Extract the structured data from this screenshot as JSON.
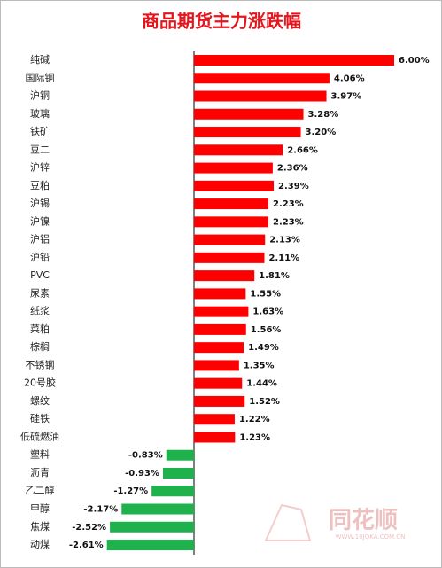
{
  "chart_data": {
    "type": "hbar",
    "title": "商品期货主力涨跌幅",
    "categories": [
      "纯碱",
      "国际铜",
      "沪铜",
      "玻璃",
      "铁矿",
      "豆二",
      "沪锌",
      "豆粕",
      "沪锡",
      "沪镍",
      "沪铝",
      "沪铅",
      "PVC",
      "尿素",
      "纸浆",
      "菜粕",
      "棕榈",
      "不锈钢",
      "20号胶",
      "螺纹",
      "硅铁",
      "低硫燃油",
      "塑料",
      "沥青",
      "乙二醇",
      "甲醇",
      "焦煤",
      "动煤"
    ],
    "values": [
      6.0,
      4.06,
      3.97,
      3.28,
      3.2,
      2.66,
      2.36,
      2.39,
      2.23,
      2.23,
      2.13,
      2.11,
      1.81,
      1.55,
      1.63,
      1.56,
      1.49,
      1.35,
      1.44,
      1.52,
      1.22,
      1.23,
      -0.83,
      -0.93,
      -1.27,
      -2.17,
      -2.52,
      -2.61
    ],
    "value_labels": [
      "6.00%",
      "4.06%",
      "3.97%",
      "3.28%",
      "3.20%",
      "2.66%",
      "2.36%",
      "2.39%",
      "2.23%",
      "2.23%",
      "2.13%",
      "2.11%",
      "1.81%",
      "1.55%",
      "1.63%",
      "1.56%",
      "1.49%",
      "1.35%",
      "1.44%",
      "1.52%",
      "1.22%",
      "1.23%",
      "-0.83%",
      "-0.93%",
      "-1.27%",
      "-2.17%",
      "-2.52%",
      "-2.61%"
    ],
    "positive_color": "#ff0000",
    "negative_color": "#1fb24c",
    "watermark": "同花顺",
    "watermark_url": "WWW.10JQKA.COM.CN"
  }
}
